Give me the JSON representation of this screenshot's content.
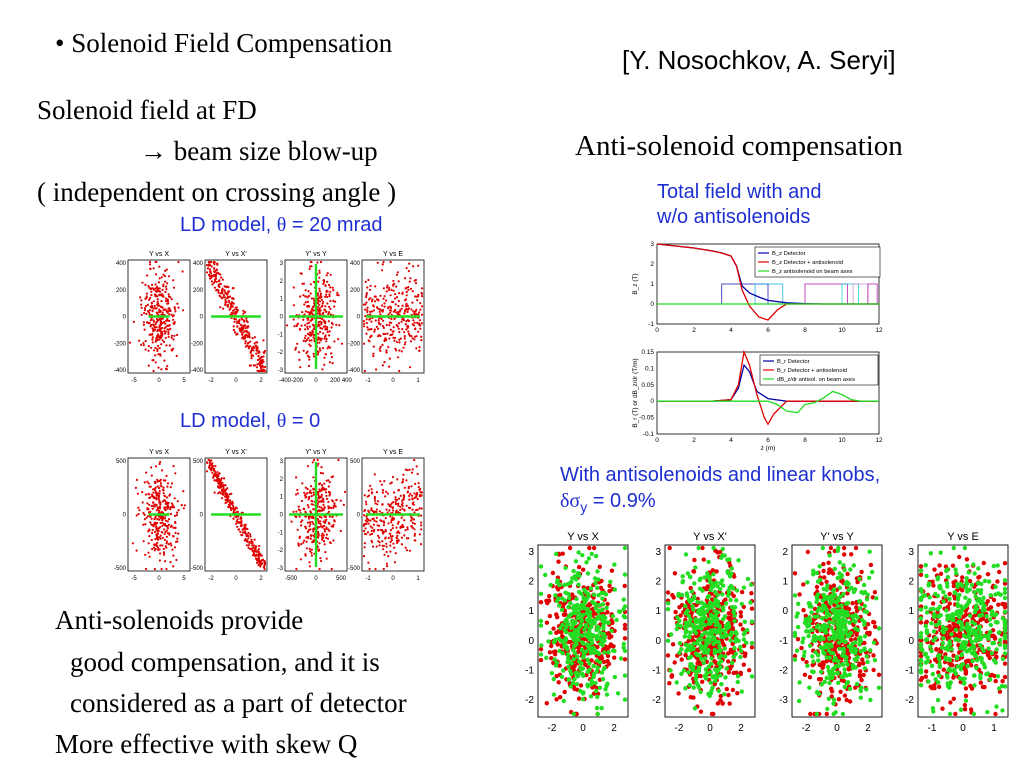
{
  "header": {
    "bullet": "•",
    "title": "Solenoid Field Compensation",
    "authors": "[Y. Nosochkov, A. Seryi]"
  },
  "left": {
    "line1": "Solenoid field at FD",
    "arrow": "→",
    "line2": "beam size blow-up",
    "line3": "( independent on crossing angle )",
    "model1_prefix": "LD model,",
    "model1_theta": "θ",
    "model1_value": "= 20 mrad",
    "model2_prefix": "LD model,",
    "model2_theta": "θ",
    "model2_value": "= 0"
  },
  "bottom_text": {
    "line1": "Anti-solenoids provide",
    "line2": "good compensation, and it is",
    "line3": "considered as a part of detector",
    "line4": "More  effective with skew Q"
  },
  "right": {
    "heading": "Anti-solenoid compensation",
    "caption_line1": "Total field with and",
    "caption_line2": "w/o antisolenoids",
    "knobs_line1": "With antisolenoids and linear knobs,",
    "knobs_delta": "δσ",
    "knobs_sub": "y",
    "knobs_value": "= 0.9%"
  },
  "colors": {
    "red": "#e00000",
    "green": "#22dd22",
    "blue": "#1d2fd1",
    "navy": "#0000aa"
  },
  "chart_data": [
    {
      "type": "scatter",
      "group": "LD model, theta = 20 mrad",
      "panels": [
        {
          "title": "Y  vs X",
          "xticks": [
            "-5",
            "0",
            "5"
          ],
          "yticks": [
            "400",
            "200",
            "0",
            "-200",
            "-400"
          ],
          "shape": "blob"
        },
        {
          "title": "Y  vs X'",
          "xticks": [
            "-2",
            "0",
            "2"
          ],
          "yticks": [
            "400",
            "200",
            "0",
            "-200",
            "-400"
          ],
          "shape": "diag"
        },
        {
          "title": "Y' vs Y",
          "xticks": [
            "-400-200",
            "0",
            "200 400"
          ],
          "yticks": [
            "3",
            "2",
            "1",
            "0",
            "-1",
            "-2",
            "-3"
          ],
          "shape": "cross"
        },
        {
          "title": "Y  vs E",
          "xticks": [
            "-1",
            "0",
            "1"
          ],
          "yticks": [
            "400",
            "200",
            "0",
            "-200",
            "-400"
          ],
          "shape": "wide"
        }
      ]
    },
    {
      "type": "scatter",
      "group": "LD model, theta = 0",
      "panels": [
        {
          "title": "Y  vs X",
          "xticks": [
            "-5",
            "0",
            "5"
          ],
          "yticks": [
            "500",
            "0",
            "-500"
          ],
          "shape": "blob"
        },
        {
          "title": "Y  vs X'",
          "xticks": [
            "-2",
            "0",
            "2"
          ],
          "yticks": [
            "500",
            "0",
            "-500"
          ],
          "shape": "diag"
        },
        {
          "title": "Y' vs Y",
          "xticks": [
            "-500",
            "0",
            "500"
          ],
          "yticks": [
            "3",
            "2",
            "1",
            "0",
            "-1",
            "-2",
            "-3"
          ],
          "shape": "cross"
        },
        {
          "title": "Y  vs E",
          "xticks": [
            "-1",
            "0",
            "1"
          ],
          "yticks": [
            "500",
            "0",
            "-500"
          ],
          "shape": "wide"
        }
      ]
    },
    {
      "type": "line",
      "xlim": [
        0,
        12
      ],
      "ylim": [
        -1,
        3
      ],
      "xticks": [
        "0",
        "2",
        "4",
        "6",
        "8",
        "10",
        "12"
      ],
      "yticks": [
        "3",
        "2",
        "1",
        "0",
        "-1"
      ],
      "ylabel": "B_z (T)",
      "legend": [
        "B_z Detector",
        "B_z Detector + antisolenoid",
        "B_z antisolenoid on beam axes"
      ],
      "series": [
        {
          "name": "B_z Detector",
          "x": [
            0,
            1,
            2,
            3,
            3.5,
            4,
            4.3,
            4.6,
            5,
            5.5,
            6,
            7,
            8,
            9,
            12
          ],
          "y": [
            3,
            2.9,
            2.8,
            2.65,
            2.55,
            2.4,
            1.9,
            0.9,
            0.55,
            0.35,
            0.18,
            0.06,
            0.02,
            0,
            0
          ]
        },
        {
          "name": "B_z Detector + antisolenoid",
          "x": [
            0,
            1,
            2,
            3,
            3.5,
            4,
            4.3,
            4.6,
            5,
            5.5,
            6,
            6.5,
            7,
            7.5,
            8,
            9,
            12
          ],
          "y": [
            3,
            2.9,
            2.8,
            2.65,
            2.55,
            2.4,
            1.9,
            0.7,
            -0.1,
            -0.65,
            -0.8,
            -0.3,
            0,
            0,
            0,
            0,
            0
          ]
        },
        {
          "name": "B_z antisolenoid on beam axes",
          "x": [
            0,
            12
          ],
          "y": [
            0,
            0
          ]
        }
      ]
    },
    {
      "type": "line",
      "xlim": [
        0,
        12
      ],
      "ylim": [
        -0.1,
        0.15
      ],
      "xticks": [
        "0",
        "2",
        "4",
        "6",
        "8",
        "10",
        "12"
      ],
      "yticks": [
        "0.15",
        "0.1",
        "0.05",
        "0",
        "-0.05",
        "-0.1"
      ],
      "xlabel": "z (m)",
      "ylabel": "B_r (T)  or  dB_z/dr (T/m)",
      "legend": [
        "B_r Detector",
        "B_r Detector + antisolenoid",
        "dB_z/dr antisol. on beam axes"
      ],
      "series": [
        {
          "name": "B_r Detector",
          "x": [
            0,
            3,
            4,
            4.4,
            4.7,
            5,
            5.4,
            6,
            7,
            8,
            12
          ],
          "y": [
            0,
            0,
            0.005,
            0.04,
            0.11,
            0.09,
            0.03,
            0.008,
            0,
            0,
            0
          ]
        },
        {
          "name": "B_r Detector + antisolenoid",
          "x": [
            0,
            3,
            4,
            4.4,
            4.7,
            5,
            5.4,
            5.8,
            6,
            6.3,
            7,
            7.5,
            8,
            12
          ],
          "y": [
            0,
            0,
            0.005,
            0.05,
            0.15,
            0.11,
            0.02,
            -0.05,
            -0.07,
            -0.04,
            0,
            0,
            0,
            0
          ]
        },
        {
          "name": "dB_z/dr antisol. on beam axes",
          "x": [
            0,
            6,
            6.5,
            7,
            7.6,
            8,
            8.5,
            9,
            9.5,
            10,
            10.5,
            11,
            12
          ],
          "y": [
            0,
            0,
            -0.01,
            -0.03,
            -0.035,
            -0.01,
            -0.005,
            0.01,
            0.03,
            0.02,
            0.005,
            0,
            0
          ]
        }
      ]
    },
    {
      "type": "scatter",
      "group": "With antisolenoids and linear knobs",
      "panels": [
        {
          "title": "Y  vs X",
          "xticks": [
            "-2",
            "0",
            "2"
          ],
          "yticks": [
            "3",
            "2",
            "1",
            "0",
            "-1",
            "-2"
          ]
        },
        {
          "title": "Y  vs X'",
          "xticks": [
            "-2",
            "0",
            "2"
          ],
          "yticks": [
            "3",
            "2",
            "1",
            "0",
            "-1",
            "-2"
          ]
        },
        {
          "title": "Y' vs Y",
          "xticks": [
            "-2",
            "0",
            "2"
          ],
          "yticks": [
            "2",
            "1",
            "0",
            "-1",
            "-2",
            "-3"
          ]
        },
        {
          "title": "Y  vs E",
          "xticks": [
            "-1",
            "0",
            "1"
          ],
          "yticks": [
            "3",
            "2",
            "1",
            "0",
            "-1",
            "-2"
          ]
        }
      ]
    }
  ]
}
